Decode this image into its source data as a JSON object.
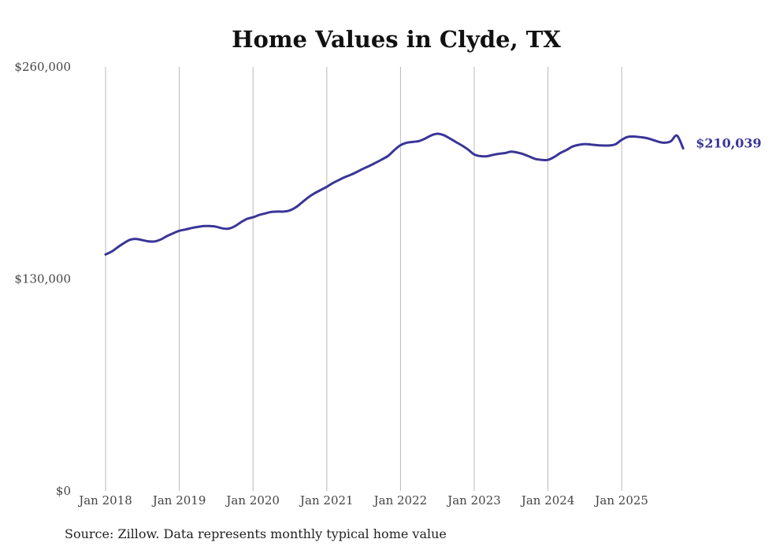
{
  "chart_data": {
    "type": "line",
    "title": "Home Values in Clyde, TX",
    "xlabel": "",
    "ylabel": "",
    "ylim": [
      0,
      260000
    ],
    "y_ticks": [
      {
        "value": 0,
        "label": "$0"
      },
      {
        "value": 130000,
        "label": "$130,000"
      },
      {
        "value": 260000,
        "label": "$260,000"
      }
    ],
    "x_ticks": [
      {
        "month_index": 0,
        "label": "Jan 2018"
      },
      {
        "month_index": 12,
        "label": "Jan 2019"
      },
      {
        "month_index": 24,
        "label": "Jan 2020"
      },
      {
        "month_index": 36,
        "label": "Jan 2021"
      },
      {
        "month_index": 48,
        "label": "Jan 2022"
      },
      {
        "month_index": 60,
        "label": "Jan 2023"
      },
      {
        "month_index": 72,
        "label": "Jan 2024"
      },
      {
        "month_index": 84,
        "label": "Jan 2025"
      }
    ],
    "x_range": [
      0,
      95
    ],
    "grid": "vertical",
    "series": [
      {
        "name": "Typical home value",
        "color": "#3a3597",
        "start": "Jan 2018",
        "values": [
          145000,
          146800,
          149500,
          152000,
          154000,
          154500,
          153800,
          153000,
          153000,
          154200,
          156300,
          158000,
          159500,
          160300,
          161200,
          161900,
          162400,
          162400,
          162000,
          161000,
          160800,
          162200,
          164700,
          166800,
          167800,
          169200,
          170200,
          171100,
          171300,
          171300,
          172000,
          174000,
          177000,
          180000,
          182500,
          184500,
          186500,
          188800,
          190700,
          192500,
          194000,
          195800,
          197700,
          199400,
          201300,
          203300,
          205500,
          209000,
          212000,
          213500,
          214000,
          214500,
          216000,
          218000,
          219000,
          218200,
          216200,
          214000,
          211800,
          209300,
          206300,
          205300,
          205200,
          206000,
          206700,
          207200,
          208000,
          207500,
          206500,
          205000,
          203500,
          203000,
          203000,
          204700,
          207200,
          209000,
          211200,
          212200,
          212700,
          212400,
          212000,
          211800,
          211800,
          212600,
          215300,
          217100,
          217300,
          216900,
          216400,
          215300,
          214100,
          213500,
          214400,
          217900,
          210039
        ],
        "end_label": "$210,039"
      }
    ]
  },
  "source_note": "Source: Zillow. Data represents monthly typical home value"
}
